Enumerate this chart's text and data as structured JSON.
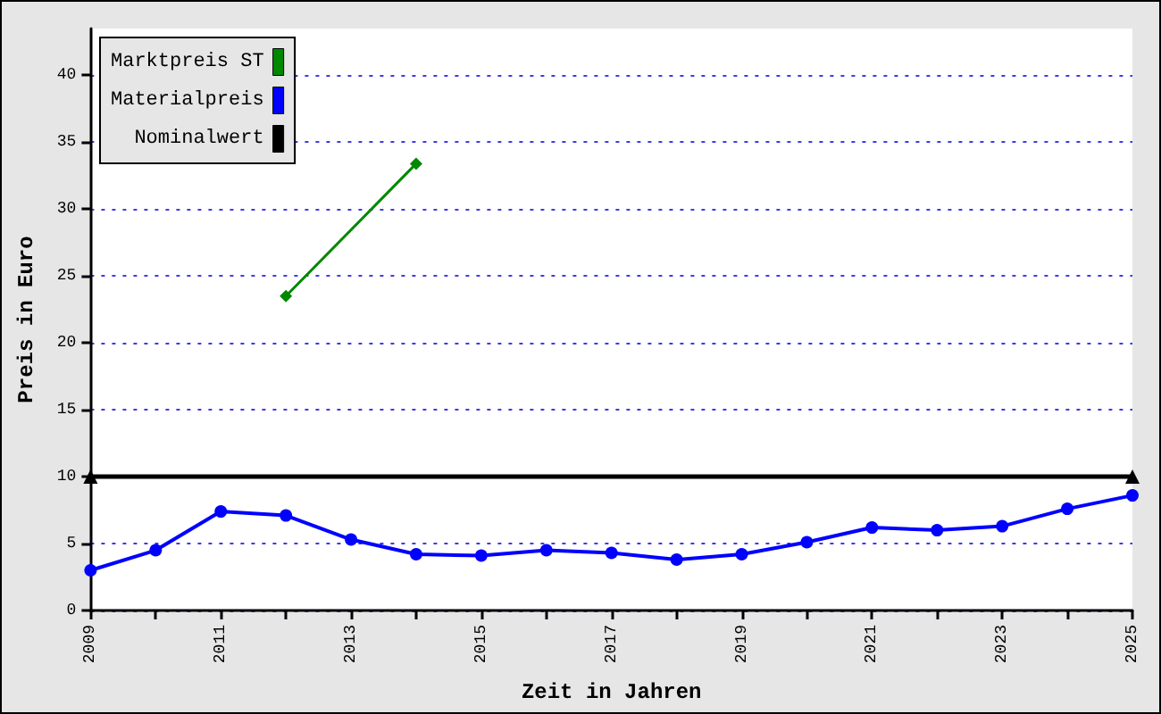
{
  "chart_data": {
    "type": "line",
    "xlabel": "Zeit in Jahren",
    "ylabel": "Preis in Euro",
    "x": [
      2009,
      2010,
      2011,
      2012,
      2013,
      2014,
      2015,
      2016,
      2017,
      2018,
      2019,
      2020,
      2021,
      2022,
      2023,
      2024,
      2025
    ],
    "series": [
      {
        "name": "Marktpreis ST",
        "color": "#008800",
        "marker": "diamond",
        "x": [
          2012,
          2014
        ],
        "values": [
          23.5,
          33.4
        ]
      },
      {
        "name": "Materialpreis",
        "color": "#0000ff",
        "marker": "circle",
        "values": [
          3.0,
          4.5,
          7.4,
          7.1,
          5.3,
          4.2,
          4.1,
          4.5,
          4.3,
          3.8,
          4.2,
          5.1,
          6.2,
          6.0,
          6.3,
          7.6,
          8.6
        ]
      },
      {
        "name": "Nominalwert",
        "color": "#000000",
        "marker": "triangle",
        "x": [
          2009,
          2025
        ],
        "values": [
          10,
          10
        ]
      }
    ],
    "xlim": [
      2009,
      2025
    ],
    "xticks": [
      2009,
      {
        "value": 2010,
        "label": null
      },
      2011,
      {
        "value": 2012,
        "label": null
      },
      2013,
      {
        "value": 2014,
        "label": null
      },
      2015,
      {
        "value": 2016,
        "label": null
      },
      2017,
      {
        "value": 2018,
        "label": null
      },
      2019,
      {
        "value": 2020,
        "label": null
      },
      2021,
      {
        "value": 2022,
        "label": null
      },
      2023,
      {
        "value": 2024,
        "label": null
      },
      2025
    ],
    "ylim": [
      0,
      43.5
    ],
    "yticks": [
      0,
      5,
      10,
      15,
      20,
      25,
      30,
      35,
      40
    ],
    "grid": "y",
    "legend": "top left",
    "line_style": "solid"
  }
}
